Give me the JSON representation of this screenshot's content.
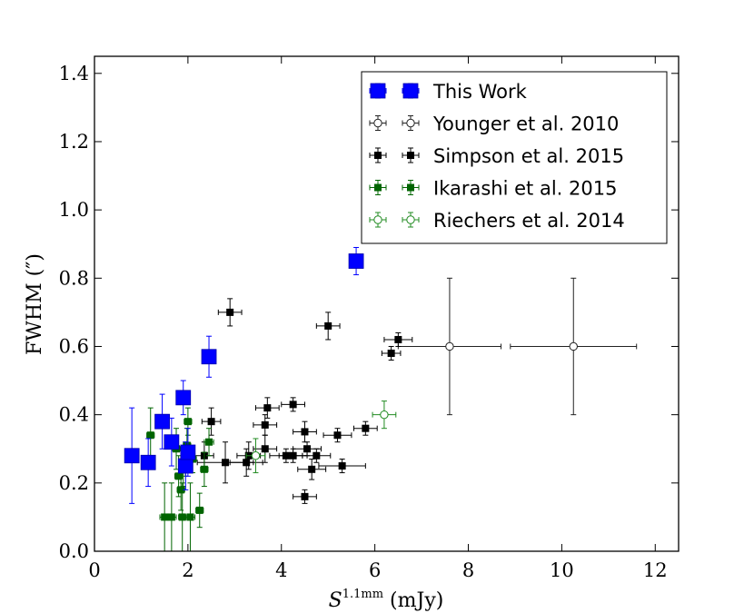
{
  "chart_data": {
    "type": "scatter",
    "title": "",
    "xlabel": {
      "symbol": "S",
      "superscript": "1.1mm",
      "unit": " (mJy)"
    },
    "ylabel": "FWHM (″)",
    "xlim": [
      0,
      12.5
    ],
    "ylim": [
      0,
      1.45
    ],
    "xticks": [
      0,
      2,
      4,
      6,
      8,
      10,
      12
    ],
    "yticks": [
      0.0,
      0.2,
      0.4,
      0.6,
      0.8,
      1.0,
      1.2,
      1.4
    ],
    "xtick_labels": [
      "0",
      "2",
      "4",
      "6",
      "8",
      "10",
      "12"
    ],
    "ytick_labels": [
      "0.0",
      "0.2",
      "0.4",
      "0.6",
      "0.8",
      "1.0",
      "1.2",
      "1.4"
    ],
    "grid": false,
    "legend_position": "top-right",
    "series": [
      {
        "name": "This Work",
        "color": "#0000ff",
        "marker": "big-square",
        "points": [
          {
            "x": 0.8,
            "y": 0.28,
            "xerr": 0.1,
            "yerr": 0.14
          },
          {
            "x": 1.15,
            "y": 0.26,
            "xerr": 0.1,
            "yerr": 0.07
          },
          {
            "x": 1.45,
            "y": 0.38,
            "xerr": 0.1,
            "yerr": 0.08
          },
          {
            "x": 1.65,
            "y": 0.32,
            "xerr": 0.1,
            "yerr": 0.07
          },
          {
            "x": 1.9,
            "y": 0.45,
            "xerr": 0.05,
            "yerr": 0.05
          },
          {
            "x": 1.95,
            "y": 0.25,
            "xerr": 0.1,
            "yerr": 0.07
          },
          {
            "x": 2.0,
            "y": 0.29,
            "xerr": 0.1,
            "yerr": 0.07
          },
          {
            "x": 2.45,
            "y": 0.57,
            "xerr": 0.1,
            "yerr": 0.06
          },
          {
            "x": 5.6,
            "y": 0.85,
            "xerr": 0.1,
            "yerr": 0.04
          }
        ]
      },
      {
        "name": "Younger et al. 2010",
        "color": "#222222",
        "marker": "open-circle",
        "points": [
          {
            "x": 7.6,
            "y": 0.6,
            "xerr": 1.1,
            "yerr": 0.2
          },
          {
            "x": 10.25,
            "y": 0.6,
            "xerr": 1.35,
            "yerr": 0.2
          }
        ]
      },
      {
        "name": "Simpson et al. 2015",
        "color": "#000000",
        "marker": "small-square",
        "points": [
          {
            "x": 2.9,
            "y": 0.7,
            "xerr": 0.25,
            "yerr": 0.04
          },
          {
            "x": 5.0,
            "y": 0.66,
            "xerr": 0.25,
            "yerr": 0.04
          },
          {
            "x": 6.5,
            "y": 0.62,
            "xerr": 0.3,
            "yerr": 0.02
          },
          {
            "x": 6.35,
            "y": 0.58,
            "xerr": 0.2,
            "yerr": 0.02
          },
          {
            "x": 4.25,
            "y": 0.43,
            "xerr": 0.25,
            "yerr": 0.02
          },
          {
            "x": 3.7,
            "y": 0.42,
            "xerr": 0.25,
            "yerr": 0.03
          },
          {
            "x": 3.65,
            "y": 0.37,
            "xerr": 0.25,
            "yerr": 0.03
          },
          {
            "x": 2.5,
            "y": 0.38,
            "xerr": 0.2,
            "yerr": 0.04
          },
          {
            "x": 4.5,
            "y": 0.35,
            "xerr": 0.25,
            "yerr": 0.03
          },
          {
            "x": 5.8,
            "y": 0.36,
            "xerr": 0.25,
            "yerr": 0.02
          },
          {
            "x": 5.2,
            "y": 0.34,
            "xerr": 0.3,
            "yerr": 0.02
          },
          {
            "x": 4.55,
            "y": 0.3,
            "xerr": 0.3,
            "yerr": 0.02
          },
          {
            "x": 3.65,
            "y": 0.3,
            "xerr": 0.25,
            "yerr": 0.04
          },
          {
            "x": 4.1,
            "y": 0.28,
            "xerr": 0.35,
            "yerr": 0.02
          },
          {
            "x": 4.25,
            "y": 0.28,
            "xerr": 0.3,
            "yerr": 0.02
          },
          {
            "x": 4.75,
            "y": 0.28,
            "xerr": 0.3,
            "yerr": 0.02
          },
          {
            "x": 3.3,
            "y": 0.28,
            "xerr": 0.25,
            "yerr": 0.04
          },
          {
            "x": 2.8,
            "y": 0.26,
            "xerr": 0.6,
            "yerr": 0.06
          },
          {
            "x": 3.25,
            "y": 0.26,
            "xerr": 0.35,
            "yerr": 0.04
          },
          {
            "x": 5.3,
            "y": 0.25,
            "xerr": 0.5,
            "yerr": 0.02
          },
          {
            "x": 4.65,
            "y": 0.24,
            "xerr": 0.3,
            "yerr": 0.03
          },
          {
            "x": 2.35,
            "y": 0.28,
            "xerr": 0.2,
            "yerr": 0.04
          },
          {
            "x": 4.5,
            "y": 0.16,
            "xerr": 0.25,
            "yerr": 0.02
          }
        ]
      },
      {
        "name": "Ikarashi et al. 2015",
        "color": "#006400",
        "marker": "small-square",
        "points": [
          {
            "x": 1.2,
            "y": 0.34,
            "xerr": 0.08,
            "yerr": 0.08
          },
          {
            "x": 1.5,
            "y": 0.1,
            "xerr": 0.1,
            "yerr": 0.1
          },
          {
            "x": 1.65,
            "y": 0.1,
            "xerr": 0.1,
            "yerr": 0.1
          },
          {
            "x": 1.75,
            "y": 0.3,
            "xerr": 0.08,
            "yerr": 0.06
          },
          {
            "x": 1.8,
            "y": 0.22,
            "xerr": 0.08,
            "yerr": 0.06
          },
          {
            "x": 1.85,
            "y": 0.18,
            "xerr": 0.08,
            "yerr": 0.06
          },
          {
            "x": 1.88,
            "y": 0.1,
            "xerr": 0.08,
            "yerr": 0.1
          },
          {
            "x": 1.95,
            "y": 0.27,
            "xerr": 0.08,
            "yerr": 0.05
          },
          {
            "x": 1.98,
            "y": 0.31,
            "xerr": 0.08,
            "yerr": 0.05
          },
          {
            "x": 2.0,
            "y": 0.38,
            "xerr": 0.08,
            "yerr": 0.04
          },
          {
            "x": 2.05,
            "y": 0.1,
            "xerr": 0.1,
            "yerr": 0.1
          },
          {
            "x": 2.1,
            "y": 0.27,
            "xerr": 0.08,
            "yerr": 0.04
          },
          {
            "x": 2.25,
            "y": 0.12,
            "xerr": 0.08,
            "yerr": 0.05
          },
          {
            "x": 2.35,
            "y": 0.24,
            "xerr": 0.08,
            "yerr": 0.05
          },
          {
            "x": 2.45,
            "y": 0.32,
            "xerr": 0.1,
            "yerr": 0.04
          },
          {
            "x": 1.9,
            "y": 0.24,
            "xerr": 0.08,
            "yerr": 0.05
          }
        ]
      },
      {
        "name": "Riechers et al. 2014",
        "color": "#228b22",
        "marker": "open-circle",
        "points": [
          {
            "x": 3.45,
            "y": 0.28,
            "xerr": 0.2,
            "yerr": 0.05
          },
          {
            "x": 6.2,
            "y": 0.4,
            "xerr": 0.25,
            "yerr": 0.04
          }
        ]
      }
    ]
  }
}
